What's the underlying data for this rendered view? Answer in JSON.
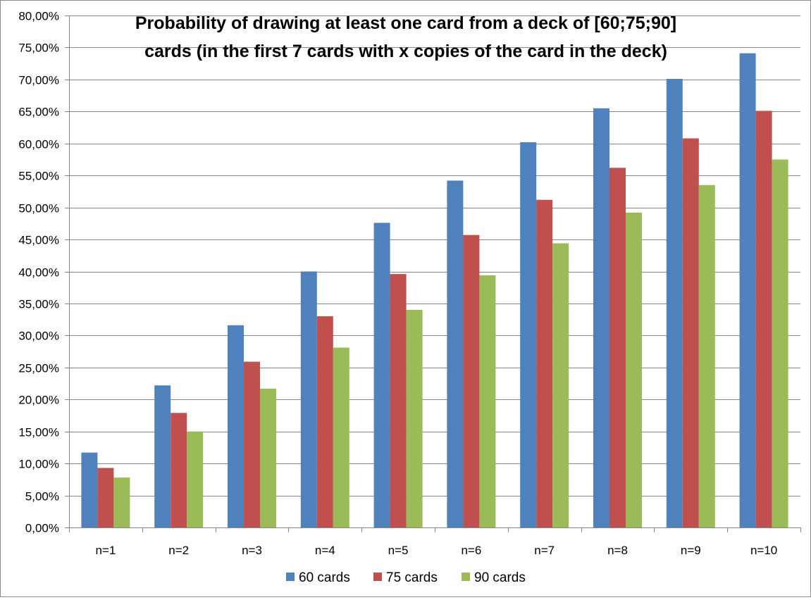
{
  "chart_data": {
    "type": "bar",
    "title_lines": [
      "Probability of drawing at least one card from a deck of [60;75;90]",
      "cards (in the first 7 cards with x copies of the card in the deck)"
    ],
    "xlabel": "",
    "ylabel": "",
    "categories": [
      "n=1",
      "n=2",
      "n=3",
      "n=4",
      "n=5",
      "n=6",
      "n=7",
      "n=8",
      "n=9",
      "n=10"
    ],
    "series": [
      {
        "name": "60 cards",
        "color": "#4f81bd",
        "values": [
          11.7,
          22.2,
          31.6,
          40.0,
          47.6,
          54.2,
          60.2,
          65.5,
          70.1,
          74.1
        ]
      },
      {
        "name": "75 cards",
        "color": "#c0504d",
        "values": [
          9.3,
          17.9,
          25.9,
          33.0,
          39.6,
          45.7,
          51.2,
          56.2,
          60.8,
          65.1
        ]
      },
      {
        "name": "90 cards",
        "color": "#9bbb59",
        "values": [
          7.8,
          15.0,
          21.7,
          28.1,
          34.0,
          39.4,
          44.4,
          49.2,
          53.5,
          57.5
        ]
      }
    ],
    "ylim": [
      0,
      80
    ],
    "yticks": [
      0,
      5,
      10,
      15,
      20,
      25,
      30,
      35,
      40,
      45,
      50,
      55,
      60,
      65,
      70,
      75,
      80
    ],
    "ytick_labels": [
      "0,00%",
      "5,00%",
      "10,00%",
      "15,00%",
      "20,00%",
      "25,00%",
      "30,00%",
      "35,00%",
      "40,00%",
      "45,00%",
      "50,00%",
      "55,00%",
      "60,00%",
      "65,00%",
      "70,00%",
      "75,00%",
      "80,00%"
    ],
    "grid": true,
    "legend_position": "bottom"
  }
}
